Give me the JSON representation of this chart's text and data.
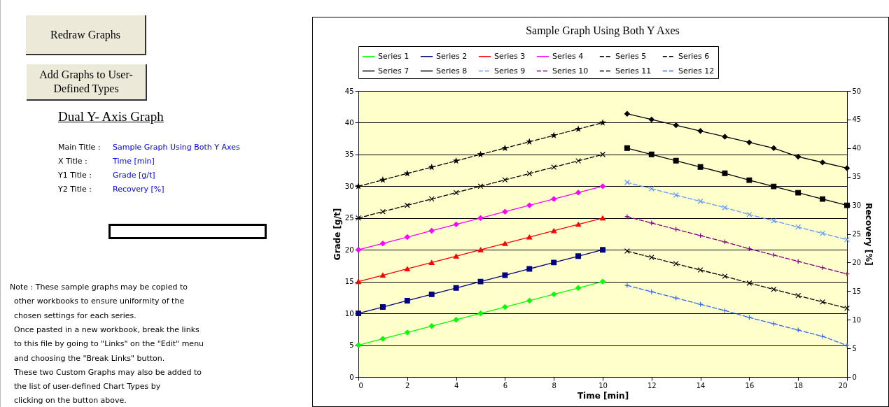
{
  "chart_data": {
    "type": "line",
    "title": "Sample Graph Using Both Y Axes",
    "xlabel": "Time [min]",
    "ylabel": "Grade [g/t]",
    "y2label": "Recovery [%]",
    "xlim": [
      0,
      20
    ],
    "xticks": [
      0,
      2,
      4,
      6,
      8,
      10,
      12,
      14,
      16,
      18,
      20
    ],
    "ylim": [
      0,
      45
    ],
    "yticks": [
      0,
      5,
      10,
      15,
      20,
      25,
      30,
      35,
      40,
      45
    ],
    "y2lim": [
      0,
      50
    ],
    "y2ticks": [
      0,
      5,
      10,
      15,
      20,
      25,
      30,
      35,
      40,
      45,
      50
    ],
    "grid": "y",
    "legend": "top",
    "line_style": "solid",
    "series": [
      {
        "name": "Series 1",
        "color": "#00ff00",
        "marker": "diamond",
        "x": [
          0,
          1,
          2,
          3,
          4,
          5,
          6,
          7,
          8,
          9,
          10
        ],
        "values": [
          5,
          6,
          7,
          8,
          9,
          10,
          11,
          12,
          13,
          14,
          15
        ]
      },
      {
        "name": "Series 2",
        "color": "#000080",
        "marker": "square",
        "x": [
          0,
          1,
          2,
          3,
          4,
          5,
          6,
          7,
          8,
          9,
          10
        ],
        "values": [
          10,
          11,
          12,
          13,
          14,
          15,
          16,
          17,
          18,
          19,
          20
        ]
      },
      {
        "name": "Series 3",
        "color": "#ff0000",
        "marker": "triangle",
        "x": [
          0,
          1,
          2,
          3,
          4,
          5,
          6,
          7,
          8,
          9,
          10
        ],
        "values": [
          15,
          16,
          17,
          18,
          19,
          20,
          21,
          22,
          23,
          24,
          25
        ]
      },
      {
        "name": "Series 4",
        "color": "#ff00ff",
        "marker": "diamond",
        "x": [
          0,
          1,
          2,
          3,
          4,
          5,
          6,
          7,
          8,
          9,
          10
        ],
        "values": [
          20,
          21,
          22,
          23,
          24,
          25,
          26,
          27,
          28,
          29,
          30
        ]
      },
      {
        "name": "Series 5",
        "color": "#000000",
        "marker": "cross",
        "line_style": "dashed",
        "x": [
          0,
          1,
          2,
          3,
          4,
          5,
          6,
          7,
          8,
          9,
          10
        ],
        "values": [
          25,
          26,
          27,
          28,
          29,
          30,
          31,
          32,
          33,
          34,
          35
        ]
      },
      {
        "name": "Series 6",
        "color": "#000000",
        "marker": "star",
        "line_style": "dashed",
        "x": [
          0,
          1,
          2,
          3,
          4,
          5,
          6,
          7,
          8,
          9,
          10
        ],
        "values": [
          30,
          31,
          32,
          33,
          34,
          35,
          36,
          37,
          38,
          39,
          40
        ]
      },
      {
        "name": "Series 7",
        "color": "#000000",
        "marker": "diamond",
        "axis": "y2",
        "x": [
          11,
          12,
          13,
          14,
          15,
          16,
          17,
          18,
          19,
          20
        ],
        "values": [
          46,
          45,
          44,
          43,
          42,
          41,
          40,
          38.5,
          37.5,
          36.5
        ]
      },
      {
        "name": "Series 8",
        "color": "#000000",
        "marker": "square",
        "axis": "y2",
        "x": [
          11,
          12,
          13,
          14,
          15,
          16,
          17,
          18,
          19,
          20
        ],
        "values": [
          40,
          38.9,
          37.8,
          36.7,
          35.6,
          34.4,
          33.3,
          32.2,
          31.1,
          30
        ]
      },
      {
        "name": "Series 9",
        "color": "#6699ff",
        "marker": "cross",
        "line_style": "dashed",
        "axis": "y2",
        "x": [
          11,
          12,
          13,
          14,
          15,
          16,
          17,
          18,
          19,
          20
        ],
        "values": [
          34,
          32.9,
          31.8,
          30.7,
          29.6,
          28.4,
          27.3,
          26.2,
          25.1,
          24
        ]
      },
      {
        "name": "Series 10",
        "color": "#800080",
        "marker": "plus",
        "line_style": "dashed",
        "axis": "y2",
        "x": [
          11,
          12,
          13,
          14,
          15,
          16,
          17,
          18,
          19,
          20
        ],
        "values": [
          28,
          26.9,
          25.8,
          24.7,
          23.6,
          22.4,
          21.3,
          20.2,
          19.1,
          18
        ]
      },
      {
        "name": "Series 11",
        "color": "#000000",
        "marker": "cross",
        "line_style": "dashed",
        "axis": "y2",
        "x": [
          11,
          12,
          13,
          14,
          15,
          16,
          17,
          18,
          19,
          20
        ],
        "values": [
          22,
          20.9,
          19.8,
          18.7,
          17.6,
          16.4,
          15.3,
          14.2,
          13.1,
          12
        ]
      },
      {
        "name": "Series 12",
        "color": "#3366ff",
        "marker": "plus",
        "line_style": "dashed",
        "axis": "y2",
        "x": [
          11,
          12,
          13,
          14,
          15,
          16,
          17,
          18,
          19,
          20
        ],
        "values": [
          16,
          14.9,
          13.8,
          12.7,
          11.6,
          10.4,
          9.3,
          8.2,
          7.1,
          5.5
        ]
      }
    ],
    "annotations": [
      "Redraw Graphs",
      "Add Graphs to User-Defined Types",
      "Dual Y- Axis Graph",
      "Main Title :",
      "Sample Graph Using Both Y Axes",
      "X Title :",
      "Time [min]",
      "Y1 Title :",
      "Grade [g/t]",
      "Y2 Title :",
      "Recovery [%]",
      "Note : These sample graphs may be copied to",
      "other workbooks to ensure uniformity of the",
      "chosen settings for each series.",
      "Once pasted in a new workbook, break the links",
      "to this file by going to \"Links\" on the \"Edit\" menu",
      "and choosing the \"Break Links\" button.",
      "These two Custom Graphs may also be added to",
      "the list of user-defined Chart Types by",
      "clicking on the button above."
    ]
  }
}
